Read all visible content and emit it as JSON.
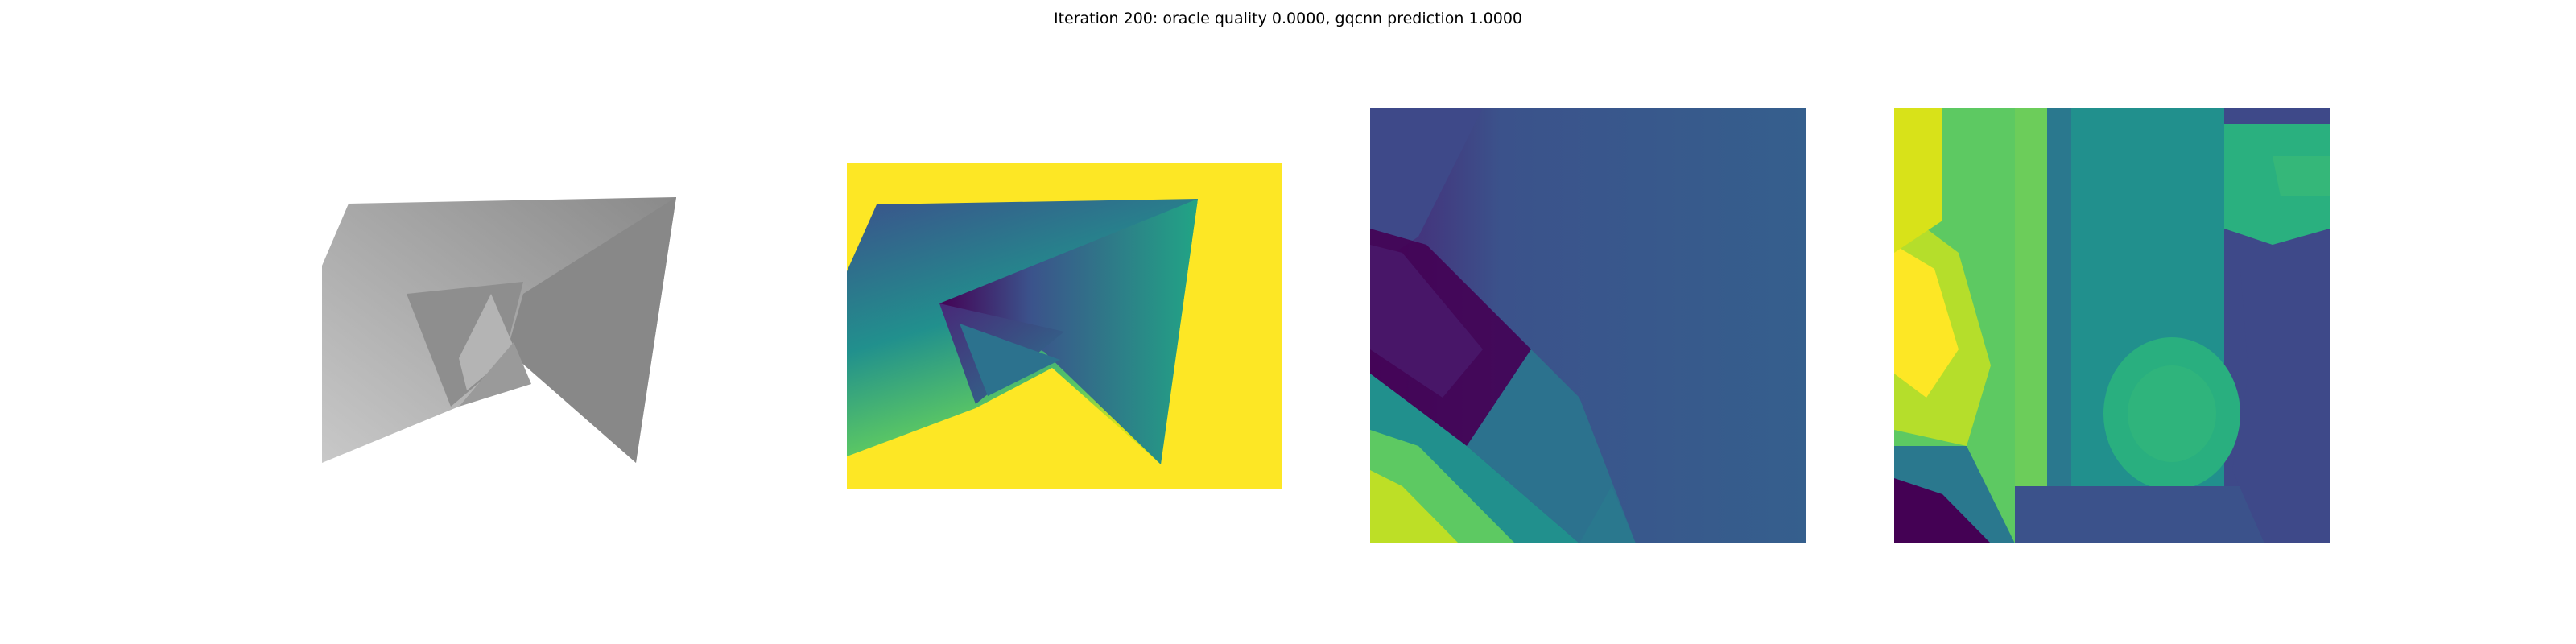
{
  "figure": {
    "title": "Iteration 200: oracle quality 0.0000, gqcnn prediction 1.0000"
  },
  "panels": [
    {
      "id": "rendered-object",
      "description": "grayscale rendered object"
    },
    {
      "id": "depth-image",
      "description": "depth image viridis"
    },
    {
      "id": "grasp-crop-left",
      "description": "cropped depth patch"
    },
    {
      "id": "grasp-crop-right",
      "description": "cropped depth patch"
    }
  ],
  "colors": {
    "viridis_dark": "#440154",
    "viridis_blue": "#3b528b",
    "viridis_teal": "#21908d",
    "viridis_green": "#5dc962",
    "viridis_yellow": "#fde725"
  }
}
